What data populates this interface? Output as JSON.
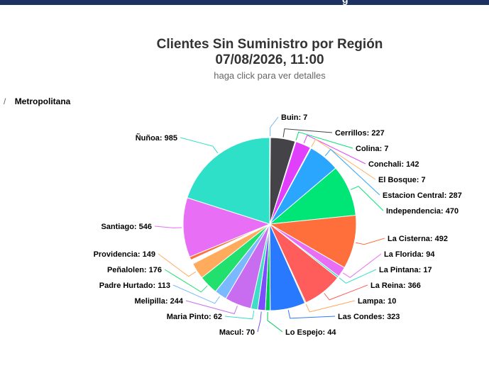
{
  "header": {
    "banner_glyph": "g"
  },
  "chart": {
    "title": "Clientes Sin Suministro por Región",
    "datetime": "07/08/2026, 11:00",
    "subtitle": "haga click para ver detalles"
  },
  "breadcrumb": {
    "separator": "/",
    "current": "Metropolitana"
  },
  "chart_data": {
    "type": "pie",
    "title": "Clientes Sin Suministro por Región",
    "subtitle": "haga click para ver detalles",
    "series": [
      {
        "name": "Buin",
        "value": 7
      },
      {
        "name": "Cerrillos",
        "value": 227
      },
      {
        "name": "Colina",
        "value": 7
      },
      {
        "name": "Conchali",
        "value": 142
      },
      {
        "name": "El Bosque",
        "value": 7
      },
      {
        "name": "Estacion Central",
        "value": 287
      },
      {
        "name": "Independencia",
        "value": 470
      },
      {
        "name": "La Cisterna",
        "value": 492
      },
      {
        "name": "La Florida",
        "value": 94
      },
      {
        "name": "La Pintana",
        "value": 17
      },
      {
        "name": "La Reina",
        "value": 366
      },
      {
        "name": "Lampa",
        "value": 10
      },
      {
        "name": "Las Condes",
        "value": 323
      },
      {
        "name": "Lo Espejo",
        "value": 44
      },
      {
        "name": "Macul",
        "value": 70
      },
      {
        "name": "Maria Pinto",
        "value": 62
      },
      {
        "name": "Melipilla",
        "value": 244
      },
      {
        "name": "Padre Hurtado",
        "value": 113
      },
      {
        "name": "Peñalolen",
        "value": 176
      },
      {
        "name": "Providencia",
        "value": 149
      },
      {
        "name": "Santiago",
        "value": 546
      },
      {
        "name": "Ñuñoa",
        "value": 985
      }
    ],
    "small_slices": [
      {
        "value": 8
      },
      {
        "value": 6
      },
      {
        "value": 5
      },
      {
        "value": 4
      },
      {
        "value": 4
      },
      {
        "value": 3
      },
      {
        "value": 3
      },
      {
        "value": 2
      },
      {
        "value": 2
      },
      {
        "value": 2
      },
      {
        "value": 30
      }
    ],
    "colors": [
      "#7cb5ec",
      "#434348",
      "#00e272",
      "#e040fb",
      "#ffb066",
      "#2ba6ff",
      "#00e676",
      "#ff6f3c",
      "#e86ef5",
      "#2ee0c8",
      "#ff5c5c",
      "#ffa95e",
      "#2979ff",
      "#00c853",
      "#7c4dff",
      "#3fdcc8",
      "#c86cf0",
      "#7ab8ff",
      "#22e06e",
      "#ffab5e",
      "#6b8cc4",
      "#3d46b8",
      "#ffae66"
    ],
    "label_format": "{name}: {value}"
  }
}
